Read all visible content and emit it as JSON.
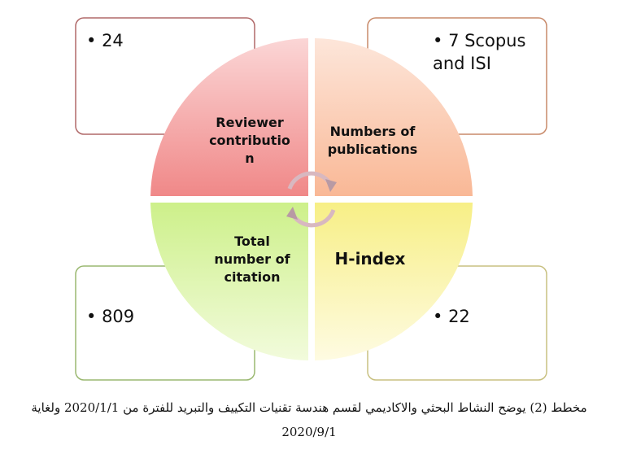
{
  "quadrants": [
    {
      "label": "Reviewer contribution",
      "value": "24"
    },
    {
      "label": "Numbers of publications",
      "value": "7 Scopus and ISI"
    },
    {
      "label": "Total number of citation",
      "value": "809"
    },
    {
      "label": "H-index",
      "value": "22"
    }
  ],
  "caption": "مخطط (2) يوضح النشاط البحثي والاكاديمي لقسم هندسة تقنيات التكييف والتبريد للفترة من 2020/1/1 ولغاية 2020/9/1"
}
